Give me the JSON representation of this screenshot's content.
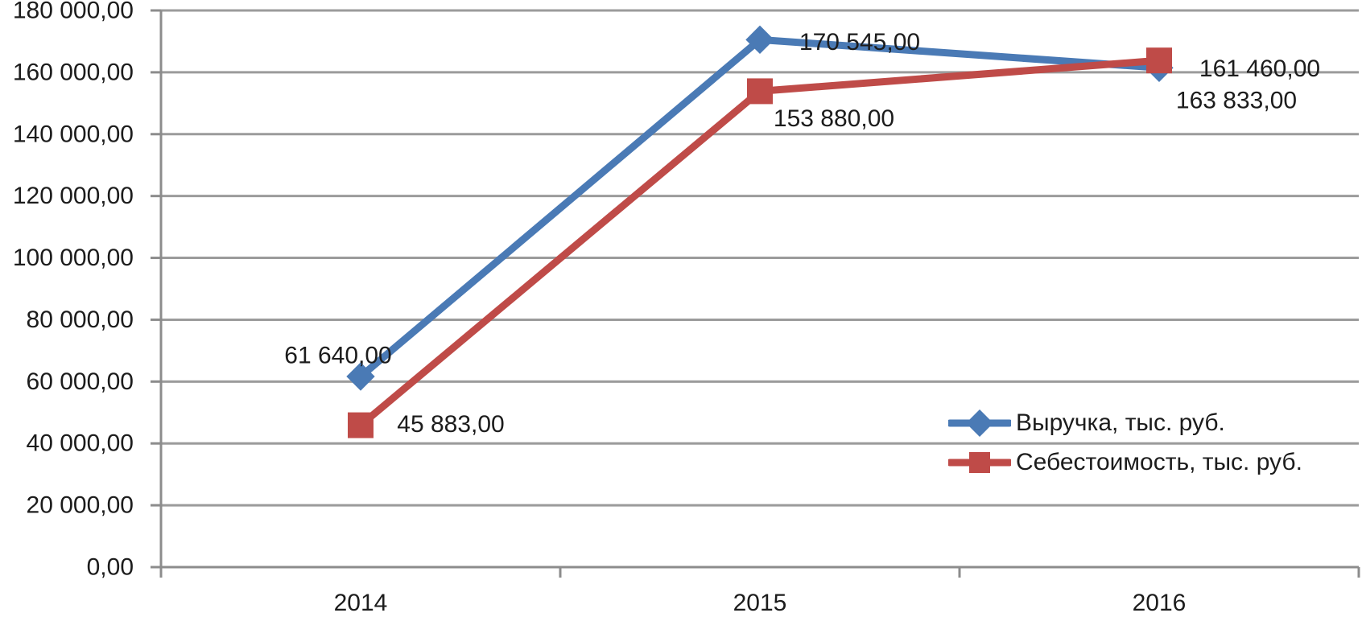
{
  "chart_data": {
    "type": "line",
    "title": "",
    "categories": [
      "2014",
      "2015",
      "2016"
    ],
    "series": [
      {
        "name": "Выручка, тыс. руб.",
        "color": "#4A7AB5",
        "marker": "diamond",
        "values": [
          61640,
          170545,
          161460
        ],
        "data_labels": [
          "61 640,00",
          "170 545,00",
          "161 460,00"
        ],
        "label_offsets": [
          {
            "dx": -28,
            "dy": -26
          },
          {
            "dx": 124,
            "dy": 3
          },
          {
            "dx": 125,
            "dy": 1
          }
        ]
      },
      {
        "name": "Себестоимость, тыс. руб.",
        "color": "#BF4B48",
        "marker": "square",
        "values": [
          45883,
          153880,
          163833
        ],
        "data_labels": [
          "45 883,00",
          "153 880,00",
          "163 833,00"
        ],
        "label_offsets": [
          {
            "dx": 112,
            "dy": -1
          },
          {
            "dx": 92,
            "dy": 34
          },
          {
            "dx": 96,
            "dy": 50
          }
        ]
      }
    ],
    "y_axis": {
      "min": 0,
      "max": 180000,
      "step": 20000,
      "tick_labels": [
        "0,00",
        "20 000,00",
        "40 000,00",
        "60 000,00",
        "80 000,00",
        "100 000,00",
        "120 000,00",
        "140 000,00",
        "160 000,00",
        "180 000,00"
      ]
    },
    "x_axis": {
      "labels": [
        "2014",
        "2015",
        "2016"
      ]
    },
    "grid": true,
    "legend": {
      "position": "inside-bottom-right"
    },
    "colors": {
      "grid": "#9B9B9B",
      "axis": "#8C8C8C",
      "text": "#1C1C1C",
      "background": "#FFFFFF"
    }
  }
}
